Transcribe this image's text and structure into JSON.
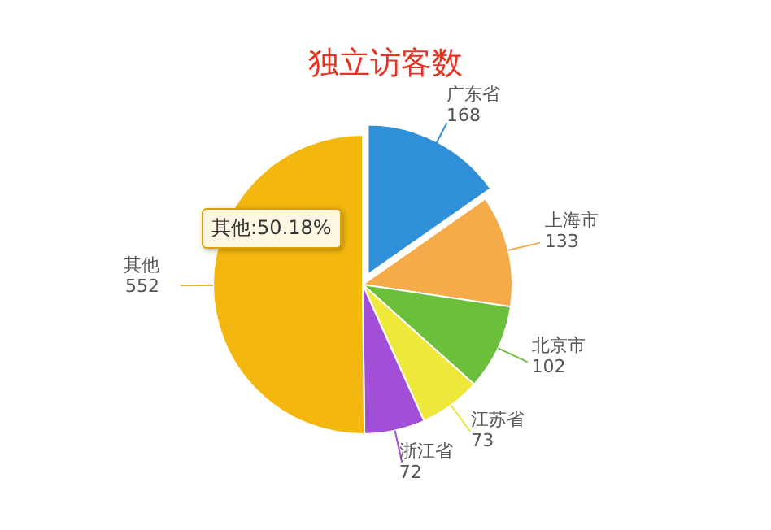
{
  "chart_data": {
    "type": "pie",
    "title": "独立访客数",
    "categories": [
      "广东省",
      "上海市",
      "北京市",
      "江苏省",
      "浙江省",
      "其他"
    ],
    "values": [
      168,
      133,
      102,
      73,
      72,
      552
    ],
    "colors": [
      "#2f8fd8",
      "#f5ab4a",
      "#6bbf3a",
      "#eee83a",
      "#a24fd8",
      "#f4b70f"
    ],
    "data_labels": true,
    "annotations": [
      "其他:50.18%"
    ]
  }
}
